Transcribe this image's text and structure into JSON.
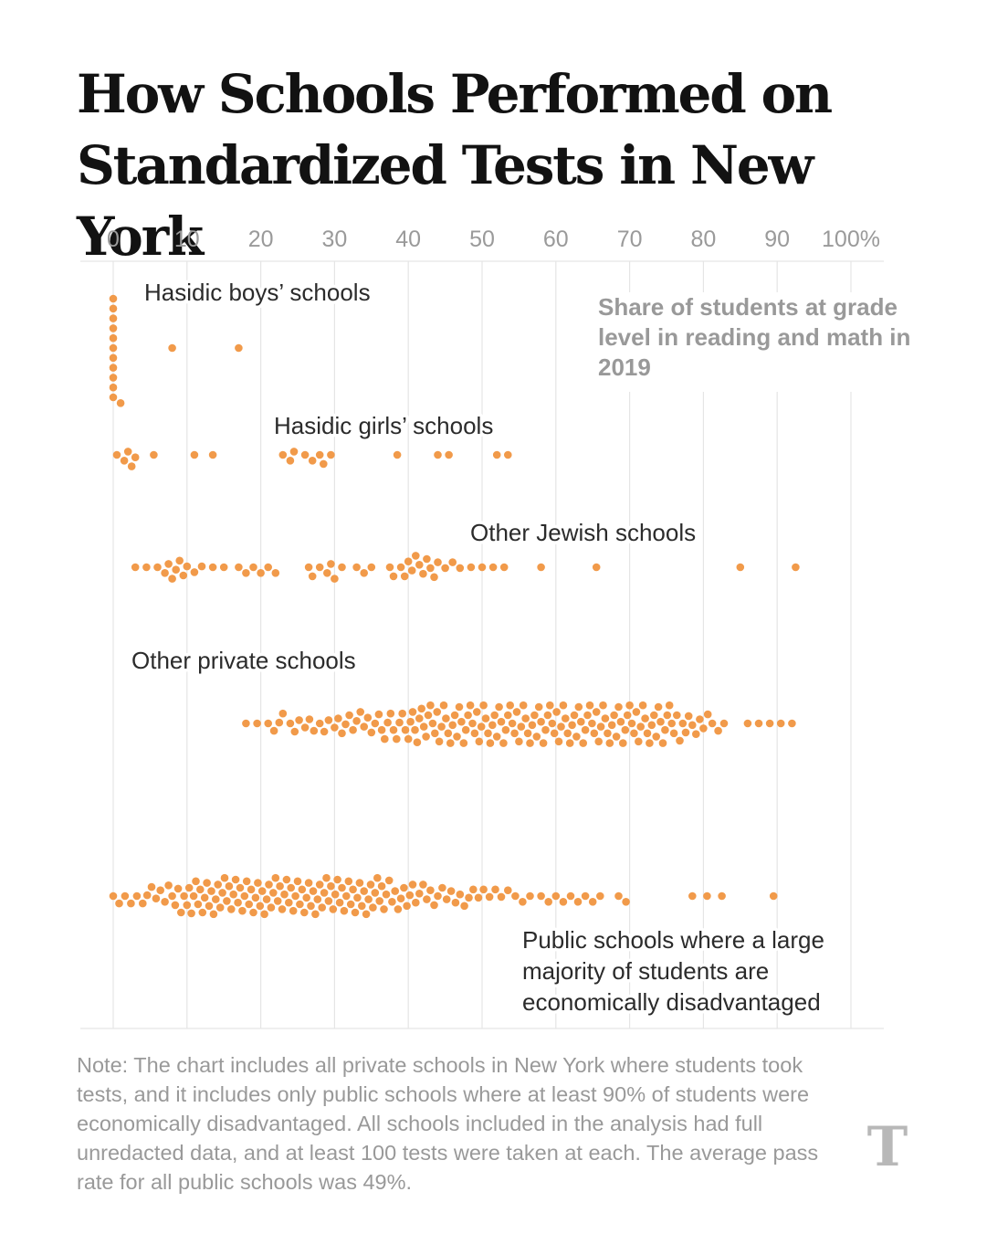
{
  "title": "How Schools Performed on Standardized Tests in New York",
  "subtitle": "Share of students at grade level in reading and math in 2019",
  "note": "Note: The chart includes all private schools in New York where students took tests, and it includes only public schools where at least 90% of students were economically disadvantaged. All schools included in the analysis had full unredacted data, and at least 100 tests were taken at each. The average pass rate for all public schools was 49%.",
  "logo": {
    "letter": "T",
    "icon": "nyt-logo-icon"
  },
  "colors": {
    "dot": "#f19a4a",
    "grid": "#e5e5e5",
    "tick": "#9a9a9a",
    "label": "#2b2b2b"
  },
  "chart_data": {
    "type": "scatter",
    "subtype": "beeswarm",
    "title": "How Schools Performed on Standardized Tests in New York",
    "xlabel": "Share of students at grade level in reading and math in 2019",
    "xlim": [
      0,
      100
    ],
    "ticks": [
      0,
      10,
      20,
      30,
      40,
      50,
      60,
      70,
      80,
      90,
      100
    ],
    "tick_labels": [
      "0",
      "10",
      "20",
      "30",
      "40",
      "50",
      "60",
      "70",
      "80",
      "90",
      "100%"
    ],
    "grid": true,
    "groups": [
      {
        "label": "Hasidic boys’ schools",
        "values": [
          0,
          0,
          0,
          0,
          0,
          0,
          0,
          0,
          0,
          0,
          0,
          1,
          8,
          17
        ]
      },
      {
        "label": "Hasidic girls’ schools",
        "values": [
          0.5,
          1.5,
          2,
          2.5,
          3,
          5.5,
          11,
          13.5,
          23,
          24,
          24.5,
          26,
          27,
          28,
          28.5,
          29.5,
          38.5,
          44,
          45.5,
          52,
          53.5
        ]
      },
      {
        "label": "Other Jewish schools",
        "values": [
          3,
          4.5,
          6,
          7,
          7.5,
          8,
          8.5,
          9,
          9.5,
          10,
          11,
          12,
          13.5,
          15,
          17,
          18,
          19,
          20,
          21,
          22,
          26.5,
          27,
          28,
          29,
          29.5,
          30,
          31,
          33,
          34,
          35,
          37.5,
          38,
          39,
          39.5,
          40,
          40.5,
          41,
          41.5,
          42,
          42.5,
          43,
          43.5,
          44,
          45,
          46,
          47,
          48.5,
          50,
          51.5,
          53,
          58,
          65.5,
          85,
          92.5
        ]
      },
      {
        "label": "Other private schools",
        "values": [
          18,
          19.5,
          21,
          21.8,
          22.5,
          23,
          24,
          24.6,
          25.2,
          26,
          26.6,
          27.2,
          28,
          28.6,
          29.2,
          30,
          30.5,
          31,
          31.5,
          32,
          32.5,
          33,
          33.5,
          34,
          34.5,
          35,
          35.5,
          36,
          36.4,
          36.8,
          37.2,
          37.6,
          38,
          38.4,
          38.8,
          39.2,
          39.6,
          40,
          40.3,
          40.6,
          40.9,
          41.2,
          41.5,
          41.8,
          42.1,
          42.4,
          42.7,
          43,
          43.3,
          43.6,
          43.9,
          44.2,
          44.5,
          44.8,
          45.1,
          45.4,
          45.7,
          46,
          46.3,
          46.6,
          46.9,
          47.2,
          47.5,
          47.8,
          48.1,
          48.4,
          48.7,
          49,
          49.3,
          49.6,
          49.9,
          50.2,
          50.5,
          50.8,
          51.1,
          51.4,
          51.7,
          52,
          52.3,
          52.6,
          52.9,
          53.2,
          53.5,
          53.8,
          54.1,
          54.4,
          54.7,
          55,
          55.3,
          55.6,
          55.9,
          56.2,
          56.5,
          56.8,
          57.1,
          57.4,
          57.7,
          58,
          58.3,
          58.6,
          58.9,
          59.2,
          59.5,
          59.8,
          60.1,
          60.4,
          60.7,
          61,
          61.3,
          61.6,
          61.9,
          62.2,
          62.5,
          62.8,
          63.1,
          63.4,
          63.7,
          64,
          64.3,
          64.6,
          64.9,
          65.2,
          65.5,
          65.8,
          66.1,
          66.4,
          66.7,
          67,
          67.3,
          67.6,
          67.9,
          68.2,
          68.5,
          68.8,
          69.1,
          69.4,
          69.7,
          70,
          70.3,
          70.6,
          70.9,
          71.2,
          71.5,
          71.8,
          72.1,
          72.4,
          72.7,
          73,
          73.3,
          73.6,
          73.9,
          74.2,
          74.5,
          74.8,
          75.1,
          75.4,
          75.7,
          76,
          76.4,
          76.8,
          77.2,
          77.6,
          78,
          78.5,
          79,
          79.5,
          80,
          80.6,
          81.2,
          82,
          82.8,
          86,
          87.5,
          89,
          90.5,
          92
        ]
      },
      {
        "label": "Public schools where a large majority of students are economically disadvantaged",
        "values": [
          0,
          0.8,
          1.6,
          2.4,
          3.2,
          4,
          4.6,
          5.2,
          5.8,
          6.4,
          7,
          7.5,
          8,
          8.4,
          8.8,
          9.2,
          9.6,
          10,
          10.3,
          10.6,
          10.9,
          11.2,
          11.5,
          11.8,
          12.1,
          12.4,
          12.7,
          13,
          13.3,
          13.6,
          13.9,
          14.2,
          14.5,
          14.8,
          15.1,
          15.4,
          15.7,
          16,
          16.3,
          16.6,
          16.9,
          17.2,
          17.5,
          17.8,
          18.1,
          18.4,
          18.7,
          19,
          19.3,
          19.6,
          19.9,
          20.2,
          20.5,
          20.8,
          21.1,
          21.4,
          21.7,
          22,
          22.3,
          22.6,
          22.9,
          23.2,
          23.5,
          23.8,
          24.1,
          24.4,
          24.7,
          25,
          25.3,
          25.6,
          25.9,
          26.2,
          26.5,
          26.8,
          27.1,
          27.4,
          27.7,
          28,
          28.3,
          28.6,
          28.9,
          29.2,
          29.5,
          29.8,
          30.1,
          30.4,
          30.7,
          31,
          31.3,
          31.6,
          31.9,
          32.2,
          32.5,
          32.8,
          33.1,
          33.4,
          33.7,
          34,
          34.3,
          34.6,
          34.9,
          35.2,
          35.5,
          35.8,
          36.1,
          36.4,
          36.7,
          37,
          37.4,
          37.8,
          38.2,
          38.6,
          39,
          39.4,
          39.8,
          40.2,
          40.6,
          41,
          41.5,
          42,
          42.5,
          43,
          43.5,
          44,
          44.6,
          45.2,
          45.8,
          46.4,
          47,
          47.6,
          48.2,
          48.8,
          49.5,
          50.2,
          51,
          51.8,
          52.6,
          53.5,
          54.5,
          55.5,
          56.5,
          58,
          59,
          60,
          61,
          62,
          63,
          64,
          65,
          66,
          68.5,
          69.5,
          78.5,
          80.5,
          82.5,
          89.5
        ]
      }
    ]
  }
}
